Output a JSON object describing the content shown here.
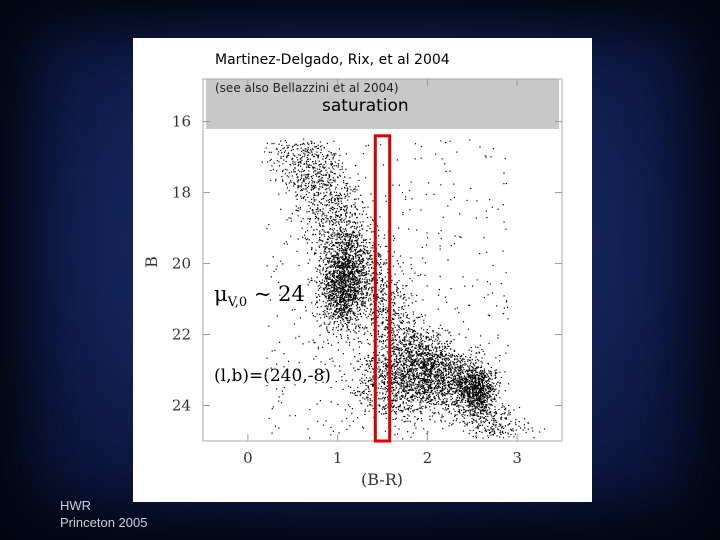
{
  "slide": {
    "credit_title": "Martinez-Delgado, Rix, et al 2004",
    "credit_sub": "(see also Bellazzini et al 2004)",
    "footer_line1": "HWR",
    "footer_line2": "Princeton  2005"
  },
  "annotations": {
    "saturation": "saturation",
    "mu_symbol": "μ",
    "mu_subscript": "V,0",
    "mu_value": " ~ 24",
    "galactic_coords": "(l,b)=(240,-8)"
  },
  "colors": {
    "background": "#13245a",
    "saturation_band": "#c8c8c8",
    "highlight_box": "#dd0000",
    "points": "#000000"
  },
  "chart_data": {
    "type": "scatter",
    "title": "",
    "xlabel": "(B-R)",
    "ylabel": "B",
    "xlim": [
      -0.5,
      3.5
    ],
    "ylim": [
      25,
      14.8
    ],
    "y_inverted": true,
    "xticks": [
      0,
      1,
      2,
      3
    ],
    "yticks": [
      16,
      18,
      20,
      22,
      24
    ],
    "grid": false,
    "saturation_region": {
      "B_from": 14.8,
      "B_to": 16.4,
      "label": "saturation"
    },
    "highlight_box": {
      "x_from": 1.42,
      "x_to": 1.58,
      "B_from": 16.4,
      "B_to": 25
    },
    "point_density_features": [
      {
        "name": "main sequence turnoff / upper ridge",
        "center": [
          1.05,
          20.6
        ],
        "spread": [
          0.18,
          0.9
        ]
      },
      {
        "name": "dense faint clump",
        "center": [
          1.9,
          23.2
        ],
        "spread": [
          0.45,
          0.8
        ]
      },
      {
        "name": "red faint clump",
        "center": [
          2.55,
          23.5
        ],
        "spread": [
          0.15,
          0.5
        ]
      }
    ]
  }
}
